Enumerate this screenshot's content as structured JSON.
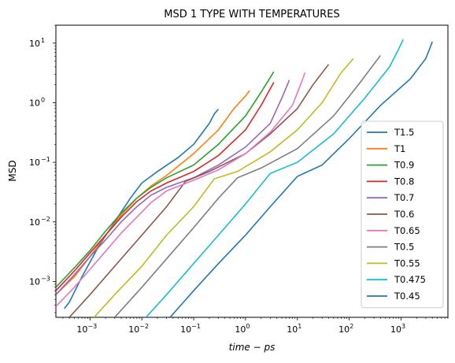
{
  "chart_data": {
    "type": "line",
    "title": "MSD 1 TYPE WITH TEMPERATURES",
    "xlabel": "time − ps",
    "ylabel": "MSD",
    "xscale": "log",
    "yscale": "log",
    "xlim": [
      0.00022,
      8000
    ],
    "ylim": [
      0.00025,
      20
    ],
    "grid": false,
    "legend_position": "lower-right",
    "x_ticks": [
      {
        "value": 0.001,
        "label": "10",
        "exp": "−3"
      },
      {
        "value": 0.01,
        "label": "10",
        "exp": "−2"
      },
      {
        "value": 0.1,
        "label": "10",
        "exp": "−1"
      },
      {
        "value": 1,
        "label": "10",
        "exp": "0"
      },
      {
        "value": 10,
        "label": "10",
        "exp": "1"
      },
      {
        "value": 100,
        "label": "10",
        "exp": "2"
      },
      {
        "value": 1000,
        "label": "10",
        "exp": "3"
      }
    ],
    "y_ticks": [
      {
        "value": 0.001,
        "label": "10",
        "exp": "−3"
      },
      {
        "value": 0.01,
        "label": "10",
        "exp": "−2"
      },
      {
        "value": 0.1,
        "label": "10",
        "exp": "−1"
      },
      {
        "value": 1,
        "label": "10",
        "exp": "0"
      },
      {
        "value": 10,
        "label": "10",
        "exp": "1"
      }
    ],
    "series": [
      {
        "name": "T1.5",
        "color": "#1f77b4",
        "points": [
          [
            0.00032,
            0.00035
          ],
          [
            0.0004,
            0.00045
          ],
          [
            0.0007,
            0.0012
          ],
          [
            0.0015,
            0.004
          ],
          [
            0.003,
            0.01
          ],
          [
            0.006,
            0.025
          ],
          [
            0.01,
            0.045
          ],
          [
            0.02,
            0.07
          ],
          [
            0.05,
            0.12
          ],
          [
            0.1,
            0.2
          ],
          [
            0.2,
            0.45
          ],
          [
            0.25,
            0.65
          ],
          [
            0.3,
            0.78
          ]
        ]
      },
      {
        "name": "T1",
        "color": "#ff7f0e",
        "points": [
          [
            0.00022,
            0.0006
          ],
          [
            0.0005,
            0.0012
          ],
          [
            0.001,
            0.0026
          ],
          [
            0.002,
            0.006
          ],
          [
            0.004,
            0.013
          ],
          [
            0.008,
            0.025
          ],
          [
            0.015,
            0.04
          ],
          [
            0.03,
            0.06
          ],
          [
            0.1,
            0.14
          ],
          [
            0.3,
            0.35
          ],
          [
            0.6,
            0.8
          ],
          [
            1,
            1.3
          ],
          [
            1.2,
            1.6
          ]
        ]
      },
      {
        "name": "T0.9",
        "color": "#2ca02c",
        "points": [
          [
            0.00022,
            0.0008
          ],
          [
            0.0005,
            0.0017
          ],
          [
            0.001,
            0.0033
          ],
          [
            0.002,
            0.007
          ],
          [
            0.004,
            0.014
          ],
          [
            0.008,
            0.025
          ],
          [
            0.015,
            0.038
          ],
          [
            0.03,
            0.055
          ],
          [
            0.1,
            0.09
          ],
          [
            0.3,
            0.2
          ],
          [
            1,
            0.6
          ],
          [
            2,
            1.5
          ],
          [
            3.5,
            3.3
          ]
        ]
      },
      {
        "name": "T0.8",
        "color": "#d62728",
        "points": [
          [
            0.00022,
            0.0007
          ],
          [
            0.0005,
            0.0015
          ],
          [
            0.001,
            0.003
          ],
          [
            0.002,
            0.006
          ],
          [
            0.004,
            0.012
          ],
          [
            0.008,
            0.022
          ],
          [
            0.015,
            0.033
          ],
          [
            0.03,
            0.045
          ],
          [
            0.1,
            0.07
          ],
          [
            0.3,
            0.13
          ],
          [
            1,
            0.35
          ],
          [
            2,
            0.9
          ],
          [
            3.5,
            2.2
          ]
        ]
      },
      {
        "name": "T0.7",
        "color": "#9467bd",
        "points": [
          [
            0.00022,
            0.0006
          ],
          [
            0.0005,
            0.0013
          ],
          [
            0.001,
            0.0026
          ],
          [
            0.002,
            0.005
          ],
          [
            0.004,
            0.01
          ],
          [
            0.008,
            0.018
          ],
          [
            0.015,
            0.028
          ],
          [
            0.03,
            0.038
          ],
          [
            0.1,
            0.055
          ],
          [
            0.3,
            0.09
          ],
          [
            1,
            0.18
          ],
          [
            3,
            0.45
          ],
          [
            5,
            1.2
          ],
          [
            7,
            2.4
          ]
        ]
      },
      {
        "name": "T0.6",
        "color": "#8c564b",
        "points": [
          [
            0.0004,
            0.00025
          ],
          [
            0.001,
            0.0006
          ],
          [
            0.003,
            0.0018
          ],
          [
            0.01,
            0.006
          ],
          [
            0.03,
            0.018
          ],
          [
            0.07,
            0.048
          ],
          [
            0.2,
            0.07
          ],
          [
            1,
            0.14
          ],
          [
            3,
            0.3
          ],
          [
            10,
            0.8
          ],
          [
            20,
            2
          ],
          [
            40,
            4.4
          ]
        ]
      },
      {
        "name": "T0.65",
        "color": "#e377c2",
        "points": [
          [
            0.00022,
            0.00038
          ],
          [
            0.0005,
            0.0008
          ],
          [
            0.001,
            0.0016
          ],
          [
            0.002,
            0.0032
          ],
          [
            0.004,
            0.0065
          ],
          [
            0.008,
            0.012
          ],
          [
            0.015,
            0.021
          ],
          [
            0.03,
            0.033
          ],
          [
            0.1,
            0.05
          ],
          [
            0.3,
            0.075
          ],
          [
            1,
            0.14
          ],
          [
            3,
            0.32
          ],
          [
            8,
            0.9
          ],
          [
            12,
            2.2
          ],
          [
            14,
            3.2
          ]
        ]
      },
      {
        "name": "T0.5",
        "color": "#7f7f7f",
        "points": [
          [
            0.003,
            0.00025
          ],
          [
            0.01,
            0.0008
          ],
          [
            0.03,
            0.0024
          ],
          [
            0.1,
            0.008
          ],
          [
            0.3,
            0.025
          ],
          [
            0.7,
            0.055
          ],
          [
            2,
            0.08
          ],
          [
            10,
            0.17
          ],
          [
            50,
            0.6
          ],
          [
            150,
            2
          ],
          [
            400,
            6.2
          ]
        ]
      },
      {
        "name": "T0.55",
        "color": "#bcbd22",
        "points": [
          [
            0.0012,
            0.00025
          ],
          [
            0.003,
            0.0006
          ],
          [
            0.01,
            0.0018
          ],
          [
            0.03,
            0.006
          ],
          [
            0.1,
            0.018
          ],
          [
            0.25,
            0.053
          ],
          [
            0.7,
            0.07
          ],
          [
            3,
            0.15
          ],
          [
            10,
            0.35
          ],
          [
            30,
            1
          ],
          [
            70,
            3.2
          ],
          [
            120,
            5.5
          ]
        ]
      },
      {
        "name": "T0.475",
        "color": "#17becf",
        "points": [
          [
            0.012,
            0.00025
          ],
          [
            0.03,
            0.0006
          ],
          [
            0.1,
            0.002
          ],
          [
            0.3,
            0.006
          ],
          [
            1,
            0.02
          ],
          [
            3,
            0.065
          ],
          [
            10,
            0.1
          ],
          [
            50,
            0.3
          ],
          [
            200,
            1.2
          ],
          [
            600,
            4
          ],
          [
            900,
            8
          ],
          [
            1100,
            11.5
          ]
        ]
      },
      {
        "name": "T0.45",
        "color": "#1f77b4",
        "points": [
          [
            0.035,
            0.00025
          ],
          [
            0.1,
            0.0007
          ],
          [
            0.3,
            0.002
          ],
          [
            1,
            0.006
          ],
          [
            3,
            0.018
          ],
          [
            10,
            0.058
          ],
          [
            30,
            0.09
          ],
          [
            100,
            0.25
          ],
          [
            400,
            0.9
          ],
          [
            1500,
            2.5
          ],
          [
            3000,
            5.5
          ],
          [
            4000,
            10.5
          ]
        ]
      }
    ]
  }
}
